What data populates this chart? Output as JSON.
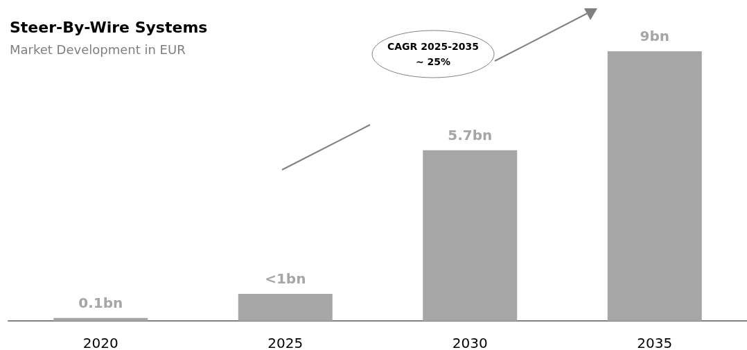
{
  "chart_data": {
    "type": "bar",
    "title": "Steer-By-Wire Systems",
    "subtitle": "Market Development in EUR",
    "categories": [
      "2020",
      "2025",
      "2030",
      "2035"
    ],
    "values": [
      0.1,
      0.9,
      5.7,
      9
    ],
    "value_labels": [
      "0.1bn",
      "<1bn",
      "5.7bn",
      "9bn"
    ],
    "color": "#a6a6a6",
    "annotations": [
      "CAGR 2025-2035\n~ 25%"
    ]
  }
}
